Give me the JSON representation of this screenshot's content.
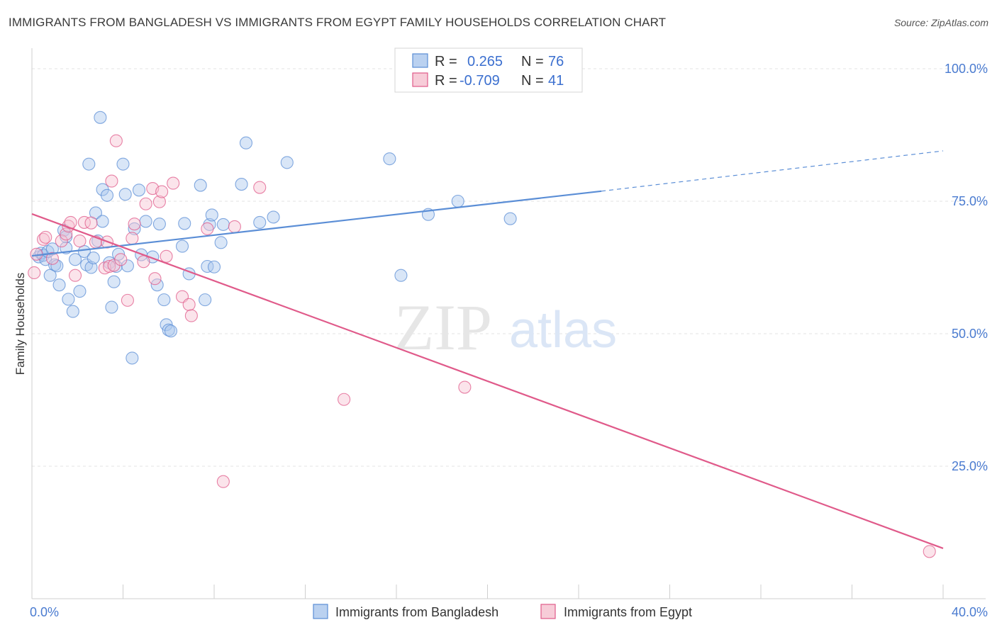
{
  "title": "IMMIGRANTS FROM BANGLADESH VS IMMIGRANTS FROM EGYPT FAMILY HOUSEHOLDS CORRELATION CHART",
  "source": "Source: ZipAtlas.com",
  "watermark": {
    "zip": "ZIP",
    "atlas": "atlas"
  },
  "legend": {
    "rows": [
      {
        "r_label": "R =",
        "r_value": "0.265",
        "n_label": "N =",
        "n_value": "76",
        "color": "#9dbde9"
      },
      {
        "r_label": "R =",
        "r_value": "-0.709",
        "n_label": "N =",
        "n_value": "41",
        "color": "#f4b6c8"
      }
    ]
  },
  "chart_data": {
    "type": "scatter",
    "ylabel": "Family Households",
    "xlabel": "",
    "xlim": [
      0,
      40
    ],
    "ylim": [
      0,
      100
    ],
    "x_tick_labels": [
      {
        "v": 0,
        "label": "0.0%"
      },
      {
        "v": 40,
        "label": "40.0%"
      }
    ],
    "y_tick_labels": [
      {
        "v": 100,
        "label": "100.0%"
      },
      {
        "v": 75,
        "label": "75.0%"
      },
      {
        "v": 50,
        "label": "50.0%"
      },
      {
        "v": 25,
        "label": "25.0%"
      }
    ],
    "legend_position": "top-center",
    "grid": true,
    "series": [
      {
        "name": "Immigrants from Bangladesh",
        "color": "#5b8ed6",
        "fill": "#aac7ee",
        "trend": {
          "x0": 0,
          "y0": 64.7,
          "x1": 25.0,
          "y1": 76.9,
          "dash_to_x": 40,
          "dash_to_y": 84.5
        },
        "points": [
          [
            0.3,
            64.5
          ],
          [
            0.4,
            65.2
          ],
          [
            0.5,
            64.8
          ],
          [
            0.6,
            64.0
          ],
          [
            0.7,
            65.5
          ],
          [
            0.8,
            61.0
          ],
          [
            0.9,
            66.0
          ],
          [
            1.0,
            63.0
          ],
          [
            1.1,
            62.8
          ],
          [
            1.2,
            59.2
          ],
          [
            1.4,
            69.5
          ],
          [
            1.5,
            66.2
          ],
          [
            1.5,
            68.3
          ],
          [
            1.6,
            56.5
          ],
          [
            1.8,
            54.2
          ],
          [
            1.9,
            64.0
          ],
          [
            2.1,
            58.0
          ],
          [
            2.3,
            65.5
          ],
          [
            2.4,
            63.0
          ],
          [
            2.5,
            82.0
          ],
          [
            2.6,
            62.5
          ],
          [
            2.7,
            64.3
          ],
          [
            2.8,
            72.8
          ],
          [
            2.9,
            67.5
          ],
          [
            3.0,
            90.8
          ],
          [
            3.1,
            77.2
          ],
          [
            3.1,
            71.2
          ],
          [
            3.3,
            76.1
          ],
          [
            3.4,
            63.4
          ],
          [
            3.5,
            55.0
          ],
          [
            3.6,
            59.8
          ],
          [
            3.7,
            62.7
          ],
          [
            3.8,
            65.0
          ],
          [
            4.0,
            82.0
          ],
          [
            4.1,
            76.3
          ],
          [
            4.2,
            62.8
          ],
          [
            4.4,
            45.4
          ],
          [
            4.5,
            69.8
          ],
          [
            4.7,
            77.1
          ],
          [
            4.8,
            64.9
          ],
          [
            5.0,
            71.2
          ],
          [
            5.3,
            64.5
          ],
          [
            5.5,
            59.2
          ],
          [
            5.6,
            70.7
          ],
          [
            5.8,
            56.4
          ],
          [
            5.9,
            51.7
          ],
          [
            6.0,
            50.7
          ],
          [
            6.1,
            50.5
          ],
          [
            6.6,
            66.5
          ],
          [
            6.7,
            70.8
          ],
          [
            6.9,
            61.3
          ],
          [
            7.4,
            78.0
          ],
          [
            7.6,
            56.4
          ],
          [
            7.7,
            62.7
          ],
          [
            7.8,
            70.6
          ],
          [
            7.9,
            72.4
          ],
          [
            8.0,
            62.6
          ],
          [
            8.3,
            67.2
          ],
          [
            8.4,
            70.6
          ],
          [
            9.2,
            78.2
          ],
          [
            9.4,
            86.0
          ],
          [
            10.0,
            71.0
          ],
          [
            10.6,
            72.0
          ],
          [
            11.2,
            82.3
          ],
          [
            15.7,
            83.0
          ],
          [
            16.2,
            61.0
          ],
          [
            17.4,
            72.5
          ],
          [
            18.7,
            75.0
          ],
          [
            21.0,
            71.7
          ]
        ]
      },
      {
        "name": "Immigrants from Egypt",
        "color": "#e05a8a",
        "fill": "#f7c3d3",
        "trend": {
          "x0": 0,
          "y0": 72.6,
          "x1": 40,
          "y1": 9.5
        },
        "points": [
          [
            0.1,
            61.5
          ],
          [
            0.2,
            65.0
          ],
          [
            0.5,
            67.8
          ],
          [
            0.6,
            68.2
          ],
          [
            0.9,
            64.2
          ],
          [
            1.3,
            67.5
          ],
          [
            1.5,
            68.8
          ],
          [
            1.6,
            70.3
          ],
          [
            1.7,
            71.0
          ],
          [
            1.9,
            61.0
          ],
          [
            2.1,
            67.5
          ],
          [
            2.3,
            71.0
          ],
          [
            2.6,
            70.9
          ],
          [
            2.8,
            67.3
          ],
          [
            3.2,
            62.4
          ],
          [
            3.3,
            67.3
          ],
          [
            3.4,
            62.7
          ],
          [
            3.5,
            78.8
          ],
          [
            3.6,
            62.9
          ],
          [
            3.7,
            86.4
          ],
          [
            3.9,
            64.0
          ],
          [
            4.2,
            56.3
          ],
          [
            4.4,
            68.0
          ],
          [
            4.5,
            70.7
          ],
          [
            4.9,
            63.6
          ],
          [
            5.0,
            74.5
          ],
          [
            5.3,
            77.4
          ],
          [
            5.4,
            60.4
          ],
          [
            5.6,
            74.9
          ],
          [
            5.7,
            76.8
          ],
          [
            5.9,
            64.6
          ],
          [
            6.2,
            78.4
          ],
          [
            6.6,
            57.0
          ],
          [
            6.9,
            55.5
          ],
          [
            7.0,
            53.4
          ],
          [
            7.7,
            69.8
          ],
          [
            8.4,
            22.1
          ],
          [
            8.9,
            70.2
          ],
          [
            10.0,
            77.6
          ],
          [
            13.7,
            37.6
          ],
          [
            19.0,
            39.9
          ],
          [
            39.4,
            8.9
          ]
        ]
      }
    ]
  }
}
